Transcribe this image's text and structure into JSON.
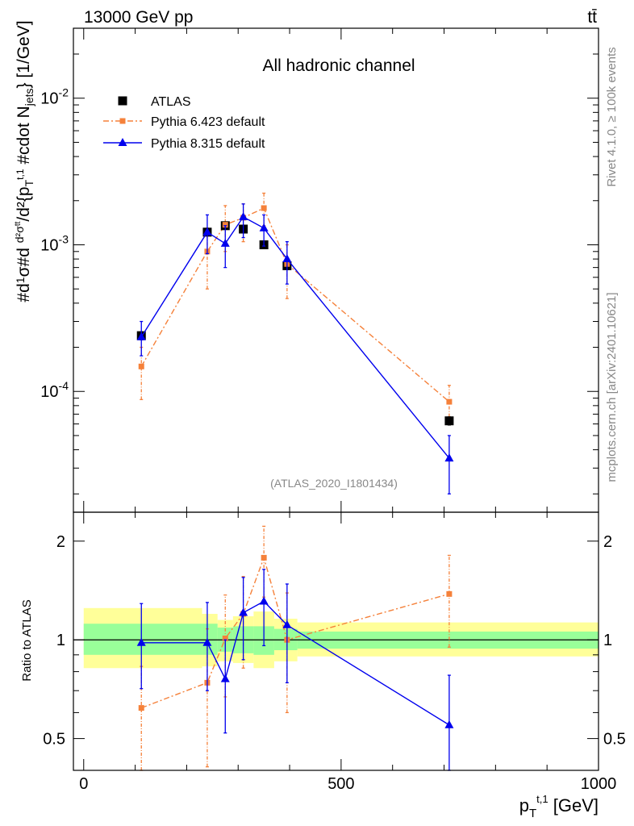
{
  "header": {
    "energy_label": "13000 GeV pp",
    "process_label": "tt̄",
    "channel_title": "All hadronic channel",
    "analysis_id": "(ATLAS_2020_I1801434)",
    "side_label_rivet": "Rivet 4.1.0, ≥ 100k events",
    "side_label_mcplots": "mcplots.cern.ch [arXiv:2401.10621]"
  },
  "colors": {
    "data": "#000000",
    "pythia6": "#f5813a",
    "pythia8": "#0000ee",
    "band_inner": "#99ff99",
    "band_outer": "#ffff99"
  },
  "chart_data": [
    {
      "type": "scatter",
      "panel": "main",
      "yscale": "log",
      "ylim": [
        1.5e-05,
        0.03
      ],
      "xlim": [
        -20,
        1000
      ],
      "ylabel": "#d1σ#d d²σ^tt / d²{p_T^t,1 #cdot N_jets} [1/GeV]",
      "ytick_labels": [
        "10^-4",
        "10^-3",
        "10^-2"
      ],
      "ytick_values": [
        0.0001,
        0.001,
        0.01
      ],
      "series": [
        {
          "name": "ATLAS",
          "style": "black squares",
          "x": [
            112,
            240,
            275,
            310,
            350,
            395,
            710
          ],
          "y": [
            0.00024,
            0.00122,
            0.00135,
            0.00128,
            0.001,
            0.00072,
            6.3e-05
          ],
          "yerr": [
            1.5e-05,
            6e-05,
            6e-05,
            6e-05,
            5e-05,
            4e-05,
            4e-06
          ]
        },
        {
          "name": "Pythia 6.423 default",
          "style": "orange dash-dot",
          "x": [
            112,
            240,
            275,
            310,
            350,
            395,
            710
          ],
          "y": [
            0.000148,
            0.0009,
            0.00137,
            0.00153,
            0.00178,
            0.00074,
            8.5e-05
          ],
          "ylow": [
            8.8e-05,
            0.0005,
            0.0009,
            0.00105,
            0.00135,
            0.00043,
            6e-05
          ],
          "yhigh": [
            0.0002,
            0.0013,
            0.00185,
            0.0019,
            0.00225,
            0.001,
            0.00011
          ]
        },
        {
          "name": "Pythia 8.315 default",
          "style": "blue solid triangles",
          "x": [
            112,
            240,
            275,
            310,
            350,
            395,
            710
          ],
          "y": [
            0.000235,
            0.00122,
            0.00102,
            0.00155,
            0.0013,
            0.0008,
            3.5e-05
          ],
          "ylow": [
            0.000175,
            0.00087,
            0.0007,
            0.00112,
            0.00098,
            0.00054,
            2e-05
          ],
          "yhigh": [
            0.0003,
            0.0016,
            0.00135,
            0.0019,
            0.0016,
            0.00105,
            5e-05
          ]
        }
      ]
    },
    {
      "type": "scatter",
      "panel": "ratio",
      "yscale": "log",
      "ylim": [
        0.4,
        2.45
      ],
      "xlim": [
        -20,
        1000
      ],
      "xlabel": "p_T^t,1 [GeV]",
      "ylabel": "Ratio to ATLAS",
      "xtick_labels": [
        "0",
        "500",
        "1000"
      ],
      "xtick_values": [
        0,
        500,
        1000
      ],
      "ytick_labels": [
        "0.5",
        "1",
        "2"
      ],
      "ytick_values": [
        0.5,
        1,
        2
      ],
      "bands": [
        {
          "x0": 0,
          "x1": 230,
          "inner": [
            0.9,
            1.12
          ],
          "outer": [
            0.82,
            1.25
          ]
        },
        {
          "x0": 230,
          "x1": 260,
          "inner": [
            0.9,
            1.12
          ],
          "outer": [
            0.83,
            1.2
          ]
        },
        {
          "x0": 260,
          "x1": 290,
          "inner": [
            0.92,
            1.09
          ],
          "outer": [
            0.86,
            1.15
          ]
        },
        {
          "x0": 290,
          "x1": 330,
          "inner": [
            0.91,
            1.1
          ],
          "outer": [
            0.85,
            1.18
          ]
        },
        {
          "x0": 330,
          "x1": 370,
          "inner": [
            0.9,
            1.1
          ],
          "outer": [
            0.82,
            1.22
          ]
        },
        {
          "x0": 370,
          "x1": 415,
          "inner": [
            0.93,
            1.08
          ],
          "outer": [
            0.86,
            1.16
          ]
        },
        {
          "x0": 415,
          "x1": 1000,
          "inner": [
            0.94,
            1.06
          ],
          "outer": [
            0.89,
            1.13
          ]
        }
      ],
      "series": [
        {
          "name": "Pythia 6.423 default",
          "x": [
            112,
            240,
            275,
            310,
            350,
            395,
            710
          ],
          "y": [
            0.62,
            0.74,
            1.01,
            1.2,
            1.78,
            1.0,
            1.38
          ],
          "ylow": [
            0.37,
            0.41,
            0.67,
            0.82,
            1.35,
            0.6,
            0.95
          ],
          "yhigh": [
            0.83,
            1.08,
            1.37,
            1.56,
            2.22,
            1.39,
            1.81
          ]
        },
        {
          "name": "Pythia 8.315 default",
          "x": [
            112,
            240,
            275,
            310,
            350,
            395,
            710
          ],
          "y": [
            0.98,
            0.98,
            0.76,
            1.21,
            1.31,
            1.11,
            0.55
          ],
          "ylow": [
            0.71,
            0.7,
            0.52,
            0.87,
            0.96,
            0.74,
            0.33
          ],
          "yhigh": [
            1.29,
            1.3,
            1.0,
            1.55,
            1.64,
            1.48,
            0.78
          ]
        }
      ]
    }
  ]
}
